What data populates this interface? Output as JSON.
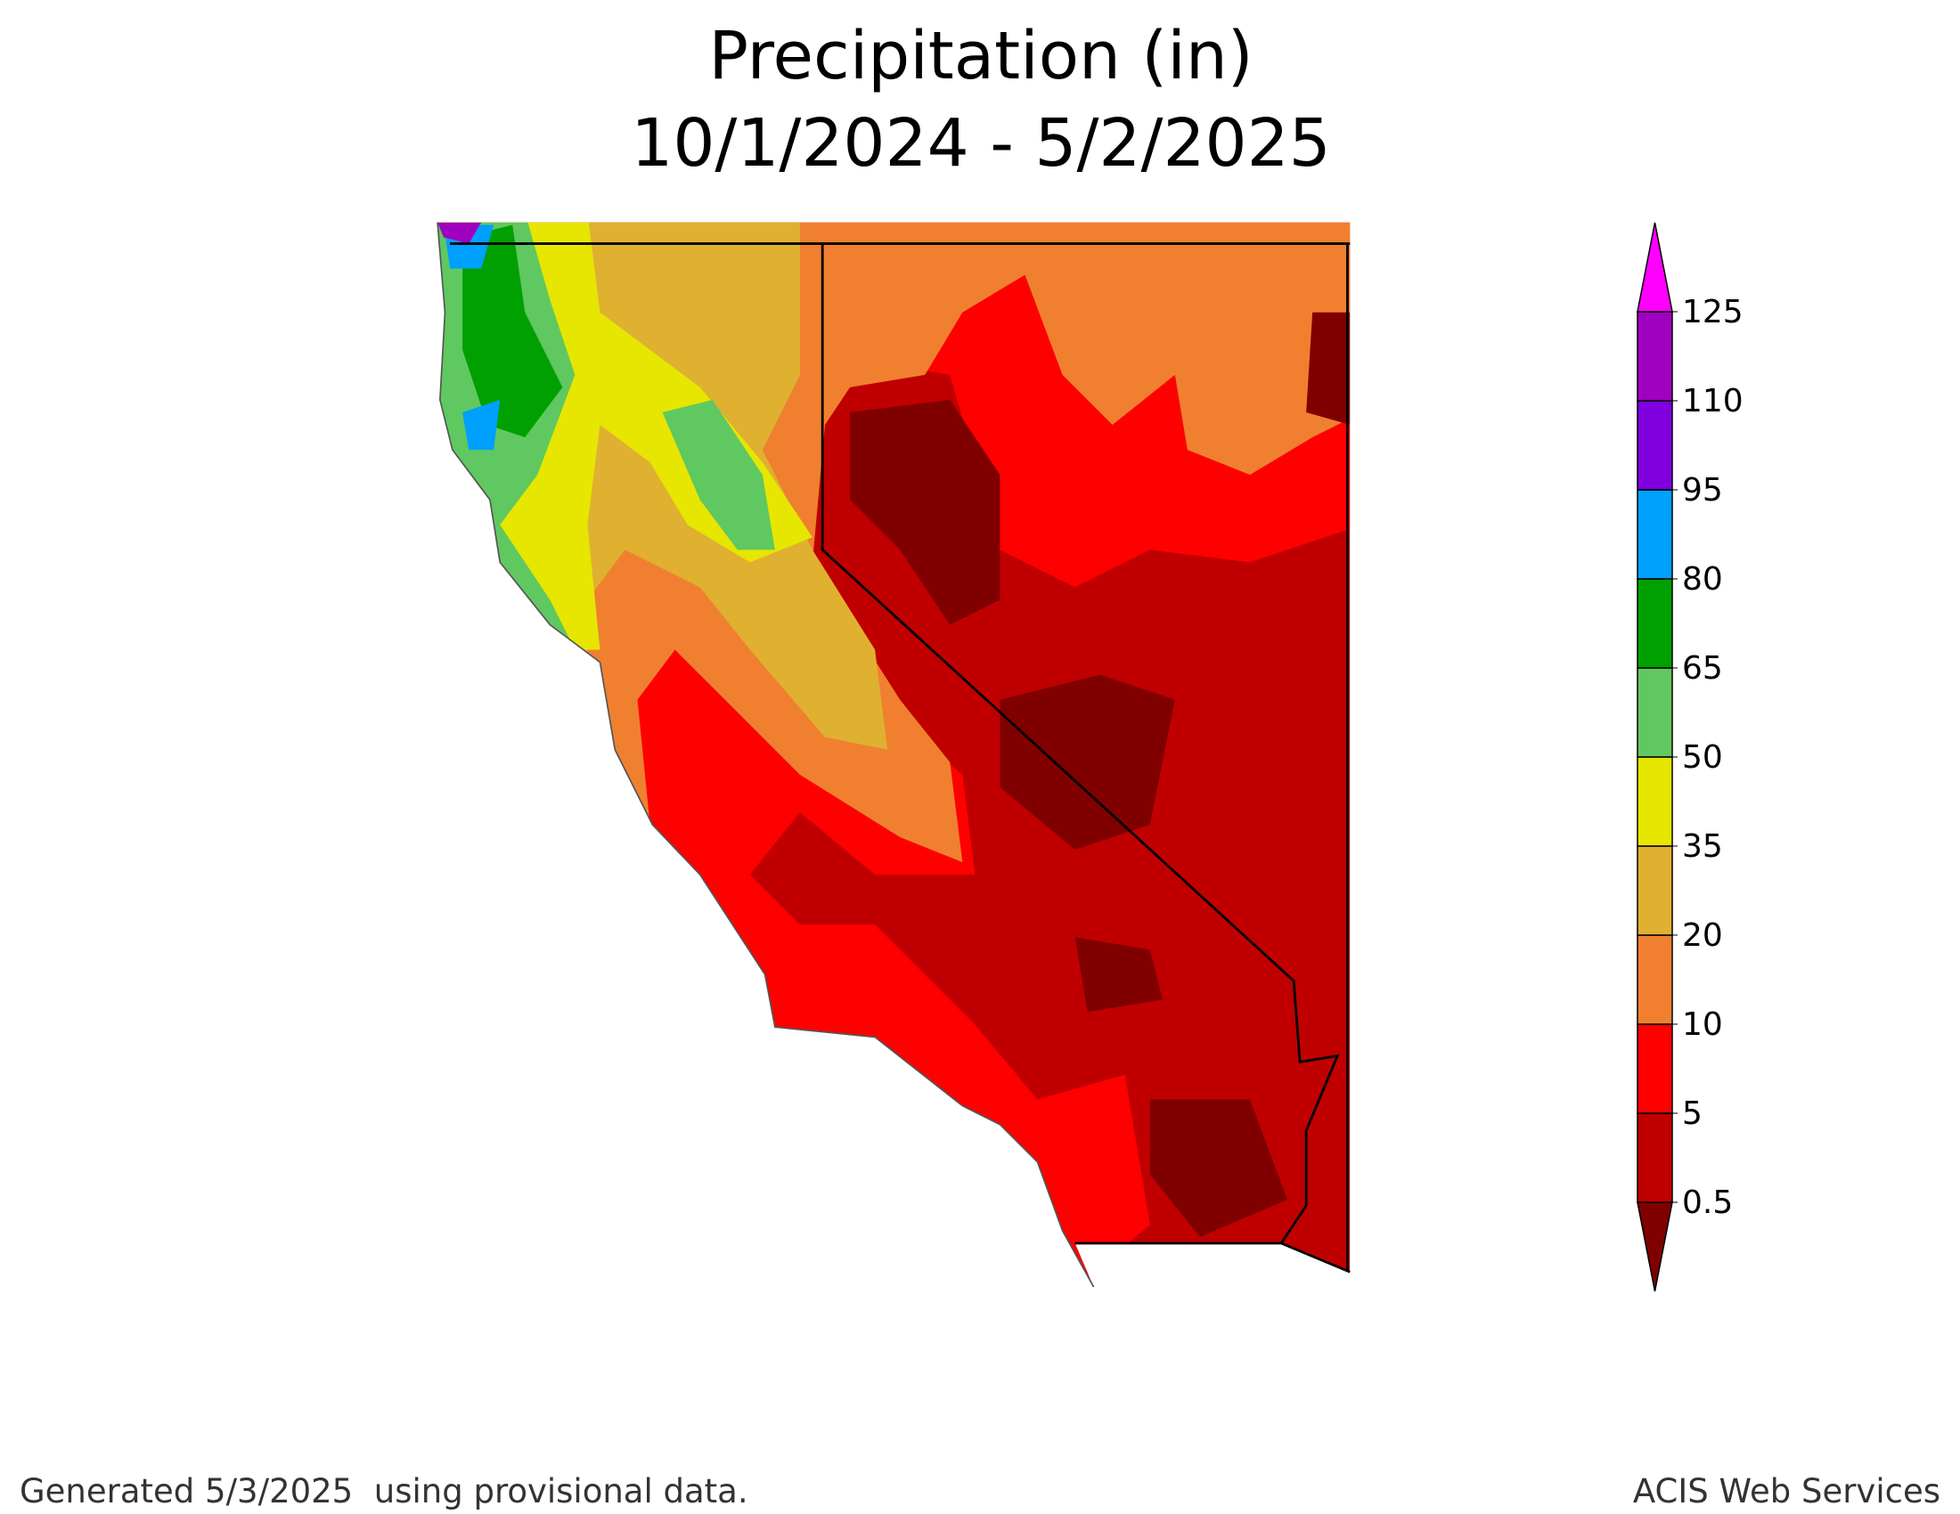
{
  "title": [
    "Precipitation (in)",
    "10/1/2024 - 5/2/2025"
  ],
  "legend": {
    "ticks": [
      0.5,
      5,
      10,
      20,
      35,
      50,
      65,
      80,
      95,
      110,
      125
    ],
    "colors": [
      "#800000",
      "#c00000",
      "#ff0000",
      "#f08030",
      "#e0b030",
      "#e6e600",
      "#60c860",
      "#00a000",
      "#00a0ff",
      "#8000e0",
      "#a000c0",
      "#ff00ff"
    ]
  },
  "footer": {
    "left": "Generated 5/3/2025  using provisional data.",
    "right": "ACIS Web Services"
  }
}
